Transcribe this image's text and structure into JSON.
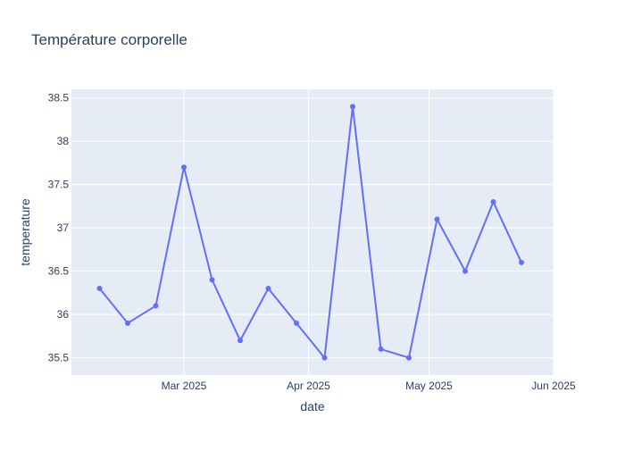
{
  "chart_data": {
    "type": "line",
    "title": "Température corporelle",
    "xlabel": "date",
    "ylabel": "temperature",
    "x": [
      "2025-02-08",
      "2025-02-15",
      "2025-02-22",
      "2025-03-01",
      "2025-03-08",
      "2025-03-15",
      "2025-03-22",
      "2025-03-29",
      "2025-04-05",
      "2025-04-12",
      "2025-04-19",
      "2025-04-26",
      "2025-05-03",
      "2025-05-10",
      "2025-05-17",
      "2025-05-24"
    ],
    "series": [
      {
        "values": [
          36.3,
          35.9,
          36.1,
          37.7,
          36.4,
          35.7,
          36.3,
          35.9,
          35.5,
          38.4,
          35.6,
          35.5,
          37.1,
          36.5,
          37.3,
          36.6
        ]
      }
    ],
    "xlim": [
      "2025-02-01",
      "2025-06-01"
    ],
    "ylim": [
      35.3,
      38.6
    ],
    "x_ticks": [
      {
        "value": "2025-03-01",
        "label": "Mar 2025"
      },
      {
        "value": "2025-04-01",
        "label": "Apr 2025"
      },
      {
        "value": "2025-05-01",
        "label": "May 2025"
      },
      {
        "value": "2025-06-01",
        "label": "Jun 2025"
      }
    ],
    "y_ticks": [
      {
        "value": 35.5,
        "label": "35.5"
      },
      {
        "value": 36,
        "label": "36"
      },
      {
        "value": 36.5,
        "label": "36.5"
      },
      {
        "value": 37,
        "label": "37"
      },
      {
        "value": 37.5,
        "label": "37.5"
      },
      {
        "value": 38,
        "label": "38"
      },
      {
        "value": 38.5,
        "label": "38.5"
      }
    ],
    "grid": true,
    "colors": {
      "line": "#636efa",
      "plot_background": "#e5ecf6",
      "grid": "#ffffff",
      "text": "#2a3f5f"
    }
  }
}
